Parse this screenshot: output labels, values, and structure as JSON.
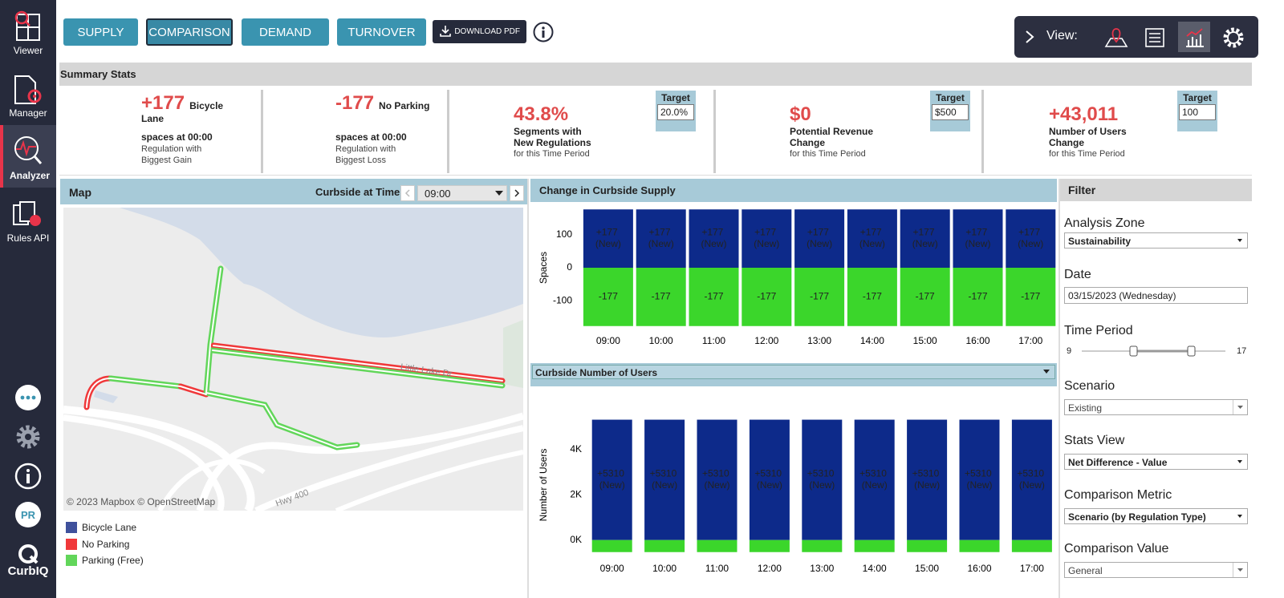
{
  "sidebar": {
    "items": [
      "Viewer",
      "Manager",
      "Analyzer",
      "Rules API"
    ],
    "avatar": "PR",
    "brand": "CurbIQ"
  },
  "toolbar": {
    "tabs": [
      "SUPPLY",
      "COMPARISON",
      "DEMAND",
      "TURNOVER"
    ],
    "download": "DOWNLOAD PDF",
    "view_label": "View:"
  },
  "summary": {
    "title": "Summary Stats",
    "cards": [
      {
        "value": "+177",
        "label": "Bicycle Lane",
        "detail": "spaces at 00:00",
        "caption": "Regulation with Biggest Gain"
      },
      {
        "value": "-177",
        "label": "No Parking",
        "detail": "spaces at 00:00",
        "caption": "Regulation with Biggest Loss"
      },
      {
        "value": "43.8%",
        "label": "Segments with New Regulations",
        "caption": "for this Time Period",
        "target_label": "Target",
        "target": "20.0%",
        "trend": "up"
      },
      {
        "value": "$0",
        "label": "Potential Revenue Change",
        "caption": "for this Time Period",
        "target_label": "Target",
        "target": "$500",
        "trend": "down"
      },
      {
        "value": "+43,011",
        "label": "Number of Users Change",
        "caption": "for this Time Period",
        "target_label": "Target",
        "target": "100",
        "trend": "up"
      }
    ]
  },
  "map": {
    "title": "Map",
    "time_label": "Curbside at Time:",
    "time": "09:00",
    "attribution": "© 2023 Mapbox © OpenStreetMap",
    "streets": [
      "Little Lake Dr",
      "Hwy 400"
    ],
    "legend": [
      {
        "name": "Bicycle Lane",
        "color": "#3f519c"
      },
      {
        "name": "No Parking",
        "color": "#f0383a"
      },
      {
        "name": "Parking (Free)",
        "color": "#62d65a"
      }
    ]
  },
  "chart_data": [
    {
      "type": "bar",
      "title": "Change in Curbside Supply",
      "y_label": "Spaces",
      "categories": [
        "09:00",
        "10:00",
        "11:00",
        "12:00",
        "13:00",
        "14:00",
        "15:00",
        "16:00",
        "17:00"
      ],
      "series": [
        {
          "name": "Bicycle Lane",
          "color": "#0d2a8a",
          "labels": true,
          "values": [
            177,
            177,
            177,
            177,
            177,
            177,
            177,
            177,
            177
          ],
          "value_labels": [
            "+177 (New)",
            "+177 (New)",
            "+177 (New)",
            "+177 (New)",
            "+177 (New)",
            "+177 (New)",
            "+177 (New)",
            "+177 (New)",
            "+177 (New)"
          ]
        },
        {
          "name": "Parking (Free)",
          "color": "#3bd62b",
          "labels": true,
          "values": [
            -177,
            -177,
            -177,
            -177,
            -177,
            -177,
            -177,
            -177,
            -177
          ]
        }
      ],
      "ylim": [
        -180,
        180
      ],
      "yticks": [
        -100,
        0,
        100
      ]
    },
    {
      "type": "bar",
      "title": "Curbside Number of Users",
      "y_label": "Number of Users",
      "categories": [
        "09:00",
        "10:00",
        "11:00",
        "12:00",
        "13:00",
        "14:00",
        "15:00",
        "16:00",
        "17:00"
      ],
      "series": [
        {
          "name": "Bicycle Lane",
          "color": "#0d2a8a",
          "labels": true,
          "values": [
            5310,
            5310,
            5310,
            5310,
            5310,
            5310,
            5310,
            5310,
            5310
          ],
          "value_labels": [
            "+5310 (New)",
            "+5310 (New)",
            "+5310 (New)",
            "+5310 (New)",
            "+5310 (New)",
            "+5310 (New)",
            "+5310 (New)",
            "+5310 (New)",
            "+5310 (New)"
          ]
        },
        {
          "name": "Parking (Free)",
          "color": "#3bd62b",
          "labels": false,
          "values": [
            -531,
            -531,
            -531,
            -531,
            -531,
            -531,
            -531,
            -531,
            -531
          ]
        }
      ],
      "ylim": [
        -540,
        5400
      ],
      "yticks": [
        {
          "value": 0,
          "label": "0K"
        },
        {
          "value": 2000,
          "label": "2K"
        },
        {
          "value": 4000,
          "label": "4K"
        }
      ]
    }
  ],
  "filter": {
    "title": "Filter",
    "fields": [
      {
        "label": "Analysis Zone",
        "value": "Sustainability"
      },
      {
        "label": "Date",
        "value": "03/15/2023 (Wednesday)"
      },
      {
        "label": "Time Period",
        "min": "9",
        "max": "17"
      },
      {
        "label": "Scenario",
        "value": "Existing"
      },
      {
        "label": "Stats View",
        "value": "Net Difference - Value"
      },
      {
        "label": "Comparison Metric",
        "value": "Scenario (by Regulation Type)"
      },
      {
        "label": "Comparison Value",
        "value": "General"
      }
    ]
  }
}
